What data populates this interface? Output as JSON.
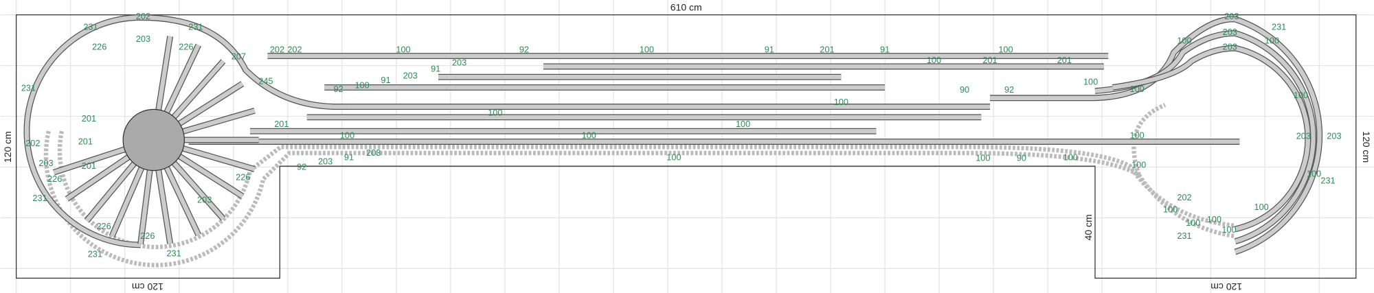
{
  "dimensions": {
    "width": "610 cm",
    "left": "120 cm",
    "right": "120 cm",
    "bottom_left": "120 cm",
    "bottom_right": "120 cm",
    "notch": "40 cm"
  },
  "track_labels": [
    "202",
    "231",
    "231",
    "226",
    "203",
    "226",
    "231",
    "207",
    "202",
    "202",
    "100",
    "92",
    "100",
    "91",
    "201",
    "91",
    "100",
    "245",
    "100",
    "201",
    "201",
    "203",
    "231",
    "100",
    "203",
    "100",
    "203",
    "100",
    "100",
    "201",
    "100",
    "100",
    "100",
    "100",
    "100",
    "92",
    "100",
    "91",
    "203",
    "91",
    "203",
    "92",
    "90",
    "100",
    "92",
    "203",
    "91",
    "203",
    "226",
    "203",
    "226",
    "226",
    "231",
    "231",
    "201",
    "201",
    "201",
    "203",
    "226",
    "231",
    "202",
    "100",
    "90",
    "100",
    "100",
    "202",
    "100",
    "100",
    "100",
    "231",
    "100",
    "100",
    "100",
    "231",
    "203",
    "203",
    "100",
    "100"
  ]
}
